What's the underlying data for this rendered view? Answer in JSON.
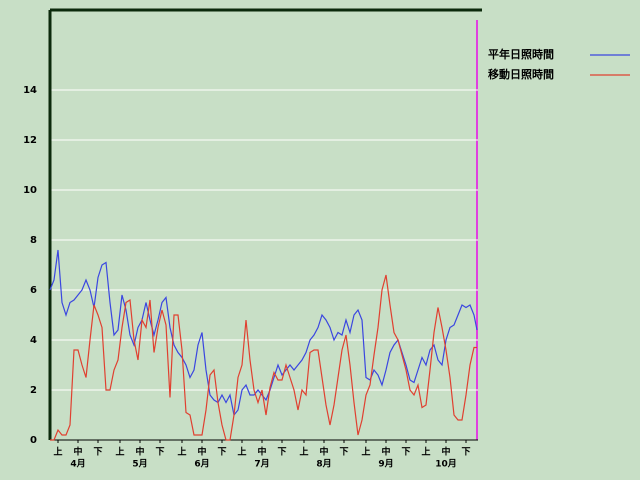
{
  "chart_data": {
    "type": "line",
    "x": [
      0,
      2,
      4,
      6,
      8,
      10,
      12,
      14,
      16,
      18,
      20,
      22,
      24,
      26,
      28,
      30,
      32,
      34,
      36,
      38,
      40,
      42,
      44,
      46,
      48,
      50,
      52,
      54,
      56,
      58,
      60,
      62,
      64,
      66,
      68,
      70,
      72,
      74,
      76,
      78,
      80,
      82,
      84,
      86,
      88,
      90,
      92,
      94,
      96,
      98,
      100,
      102,
      104,
      106,
      108,
      110,
      112,
      114,
      116,
      118,
      120,
      122,
      124,
      126,
      128,
      130,
      132,
      134,
      136,
      138,
      140,
      142,
      144,
      146,
      148,
      150,
      152,
      154,
      156,
      158,
      160,
      162,
      164,
      166,
      168,
      170,
      172,
      174,
      176,
      178,
      180,
      182,
      184,
      186,
      188,
      190,
      192,
      194,
      196,
      198,
      200,
      202,
      204,
      206,
      208,
      210,
      212,
      213.5
    ],
    "series": [
      {
        "name": "平年日照時間",
        "color": "#3a46e0",
        "values": [
          6.0,
          6.4,
          7.6,
          5.5,
          5.0,
          5.5,
          5.6,
          5.8,
          6.0,
          6.4,
          6.0,
          5.3,
          6.5,
          7.0,
          7.1,
          5.5,
          4.2,
          4.4,
          5.8,
          5.2,
          4.2,
          3.8,
          4.5,
          4.8,
          5.5,
          4.8,
          4.2,
          4.8,
          5.5,
          5.7,
          4.5,
          3.8,
          3.5,
          3.3,
          3.0,
          2.5,
          2.8,
          3.8,
          4.3,
          2.8,
          1.8,
          1.6,
          1.5,
          1.8,
          1.5,
          1.8,
          1.0,
          1.2,
          2.0,
          2.2,
          1.8,
          1.8,
          2.0,
          1.8,
          1.6,
          2.0,
          2.5,
          3.0,
          2.6,
          2.8,
          3.0,
          2.8,
          3.0,
          3.2,
          3.5,
          4.0,
          4.2,
          4.5,
          5.0,
          4.8,
          4.5,
          4.0,
          4.3,
          4.2,
          4.8,
          4.3,
          5.0,
          5.2,
          4.8,
          2.5,
          2.4,
          2.8,
          2.6,
          2.2,
          2.8,
          3.5,
          3.8,
          4.0,
          3.5,
          3.0,
          2.4,
          2.3,
          2.8,
          3.3,
          3.0,
          3.6,
          3.8,
          3.2,
          3.0,
          4.0,
          4.5,
          4.6,
          5.0,
          5.4,
          5.3,
          5.4,
          5.0,
          4.4
        ]
      },
      {
        "name": "移動日照時間",
        "color": "#e04030",
        "values": [
          0,
          0,
          0.4,
          0.2,
          0.2,
          0.6,
          3.6,
          3.6,
          3.0,
          2.5,
          4.0,
          5.4,
          5.0,
          4.5,
          2.0,
          2.0,
          2.8,
          3.2,
          4.5,
          5.5,
          5.6,
          4.0,
          3.2,
          4.8,
          4.5,
          5.6,
          3.5,
          4.5,
          5.2,
          4.6,
          1.7,
          5.0,
          5.0,
          3.6,
          1.1,
          1.0,
          0.2,
          0.2,
          0.2,
          1.2,
          2.6,
          2.8,
          1.5,
          0.6,
          0,
          0,
          1.0,
          2.5,
          3.0,
          4.8,
          3.2,
          2.0,
          1.5,
          2.0,
          1.0,
          2.1,
          2.7,
          2.4,
          2.4,
          3.0,
          2.5,
          2.0,
          1.2,
          2.0,
          1.8,
          3.5,
          3.6,
          3.6,
          2.5,
          1.4,
          0.6,
          1.4,
          2.5,
          3.6,
          4.2,
          3.0,
          1.5,
          0.2,
          0.8,
          1.8,
          2.2,
          3.4,
          4.5,
          6.0,
          6.6,
          5.4,
          4.3,
          4.0,
          3.4,
          2.8,
          2.0,
          1.8,
          2.2,
          1.3,
          1.4,
          2.8,
          4.3,
          5.3,
          4.5,
          3.6,
          2.5,
          1.0,
          0.8,
          0.8,
          1.8,
          3.0,
          3.7,
          3.7
        ]
      }
    ],
    "xlim": [
      0,
      214
    ],
    "xticks": [
      {
        "value": 4,
        "label": "上"
      },
      {
        "value": 14,
        "label": "中"
      },
      {
        "value": 24,
        "label": "下"
      },
      {
        "value": 35,
        "label": "上"
      },
      {
        "value": 45,
        "label": "中"
      },
      {
        "value": 55,
        "label": "下"
      },
      {
        "value": 66,
        "label": "上"
      },
      {
        "value": 76,
        "label": "中"
      },
      {
        "value": 86,
        "label": "下"
      },
      {
        "value": 96,
        "label": "上"
      },
      {
        "value": 106,
        "label": "中"
      },
      {
        "value": 116,
        "label": "下"
      },
      {
        "value": 127,
        "label": "上"
      },
      {
        "value": 137,
        "label": "中"
      },
      {
        "value": 147,
        "label": "下"
      },
      {
        "value": 158,
        "label": "上"
      },
      {
        "value": 168,
        "label": "中"
      },
      {
        "value": 178,
        "label": "下"
      },
      {
        "value": 188,
        "label": "上"
      },
      {
        "value": 198,
        "label": "中"
      },
      {
        "value": 208,
        "label": "下"
      }
    ],
    "month_ticks": [
      {
        "value": 14,
        "label": "4月"
      },
      {
        "value": 45,
        "label": "5月"
      },
      {
        "value": 76,
        "label": "6月"
      },
      {
        "value": 106,
        "label": "7月"
      },
      {
        "value": 137,
        "label": "8月"
      },
      {
        "value": 168,
        "label": "9月"
      },
      {
        "value": 198,
        "label": "10月"
      }
    ],
    "ylim": [
      0,
      17.2
    ],
    "yticks": [
      0,
      2,
      4,
      6,
      8,
      10,
      12,
      14
    ],
    "grid": true
  }
}
